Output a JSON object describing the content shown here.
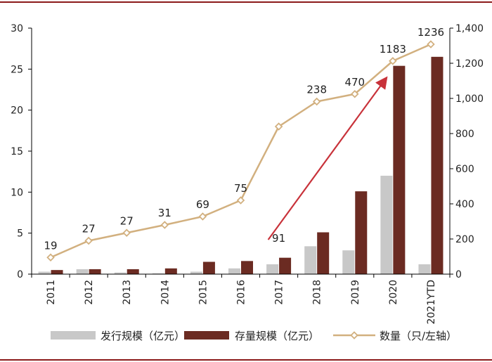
{
  "colors": {
    "issuance": "#c8c8c8",
    "outstanding": "#6b2b22",
    "count": "#d2b07f",
    "arrow": "#c8323a",
    "frame": "#8b1a1a",
    "grid": "#000000"
  },
  "chart_data": {
    "type": "bar",
    "categories": [
      "2011",
      "2012",
      "2013",
      "2014",
      "2015",
      "2016",
      "2017",
      "2018",
      "2019",
      "2020",
      "2021YTD"
    ],
    "series": [
      {
        "name": "发行规模（亿元）",
        "kind": "bar",
        "axis": "left",
        "color_key": "issuance",
        "values": [
          0.3,
          0.6,
          0.2,
          0.1,
          0.3,
          0.7,
          1.2,
          3.4,
          2.9,
          12.0,
          1.2
        ]
      },
      {
        "name": "存量规模（亿元）",
        "kind": "bar",
        "axis": "left",
        "color_key": "outstanding",
        "values": [
          0.5,
          0.6,
          0.6,
          0.7,
          1.5,
          1.6,
          2.0,
          5.1,
          10.1,
          25.4,
          26.5
        ]
      },
      {
        "name": "数量（只/左轴）",
        "kind": "line",
        "axis": "right",
        "color_key": "count",
        "values": [
          95,
          190,
          235,
          280,
          328,
          420,
          840,
          982,
          1025,
          1213,
          1308
        ]
      }
    ],
    "data_labels": [
      "19",
      "27",
      "27",
      "31",
      "69",
      "75",
      "91",
      "238",
      "470",
      "1183",
      "1236"
    ],
    "left_axis": {
      "min": 0,
      "max": 30,
      "ticks": [
        "0",
        "5",
        "10",
        "15",
        "20",
        "25",
        "30"
      ]
    },
    "right_axis": {
      "min": 0,
      "max": 1400,
      "ticks": [
        "0",
        "200",
        "400",
        "600",
        "800",
        "1,000",
        "1,200",
        "1,400"
      ]
    },
    "legend": [
      "发行规模（亿元）",
      "存量规模（亿元）",
      "数量（只/左轴）"
    ],
    "grid": false,
    "legend_position": "bottom",
    "annotation": {
      "type": "trend-arrow",
      "from_category": "2017",
      "to_category": "2020"
    }
  }
}
